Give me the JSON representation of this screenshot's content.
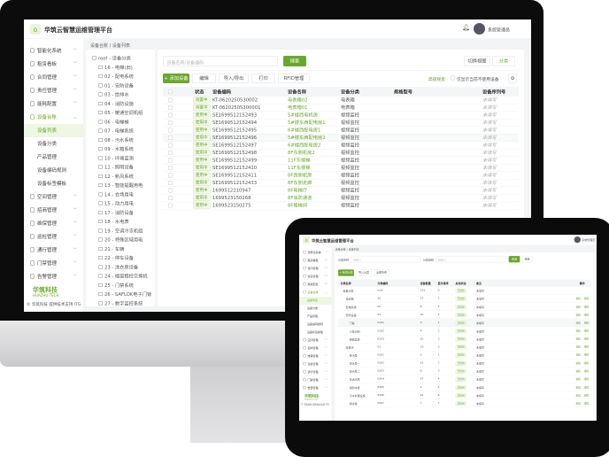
{
  "colors": {
    "accent": "#6aa82b",
    "bezel": "#0c0c0c"
  },
  "app": {
    "title": "华筑云智慧运维管理平台",
    "user": "系统管理员",
    "brand": "华筑科技",
    "brand_en": "HUAZHU TECH",
    "footer": "© 华筑科技 提供技术支持 ITG"
  },
  "sidebar": {
    "items": [
      {
        "label": "智能化系统",
        "icon": "grid-icon"
      },
      {
        "label": "租赁看板",
        "icon": "folder-icon"
      },
      {
        "label": "合同管理",
        "icon": "folder-icon"
      },
      {
        "label": "责任管理",
        "icon": "folder-icon"
      },
      {
        "label": "能耗配置",
        "icon": "folder-icon"
      },
      {
        "label": "设备台账",
        "icon": "device-icon",
        "active": true
      },
      {
        "label": "空间管理",
        "icon": "building-icon"
      },
      {
        "label": "招商管理",
        "icon": "user-icon"
      },
      {
        "label": "维保管理",
        "icon": "tool-icon"
      },
      {
        "label": "巡检管理",
        "icon": "upload-icon"
      },
      {
        "label": "通行管理",
        "icon": "gear-icon"
      },
      {
        "label": "门禁管理",
        "icon": "door-icon"
      },
      {
        "label": "告警管理",
        "icon": "bell-icon"
      }
    ],
    "sub": [
      {
        "label": "设备列表",
        "active": true
      },
      {
        "label": "设备分类"
      },
      {
        "label": "产品管理"
      },
      {
        "label": "设备编码规则"
      },
      {
        "label": "设备标签模板"
      }
    ]
  },
  "breadcrumb": "设备台账 / 设备列表",
  "tree": [
    "root - 设备分类",
    "16 - 电梯(旧)",
    "02 - 配电系统",
    "01 - 安防设备",
    "03 - 给排水",
    "04 - 消防设施",
    "05 - 暖通空调机组",
    "06 - 电梯梯",
    "07 - 电梯系统",
    "08 - 污水系统",
    "09 - 水箱系统",
    "10 - 环境监测",
    "11 - 照明设备",
    "12 - 新风系统",
    "13 - 智能提醒用电",
    "14 - 会场用电",
    "15 - 动力用电",
    "17 - 消防设备",
    "18 - 水电表",
    "19 - 空调冷冻机组",
    "20 - 特殊区域用电",
    "21 - 车辆",
    "22 - 停车设备",
    "23 - 洗衣房设备",
    "24 - 楼层程控交换机",
    "25 - 门禁系统",
    "26 - SAFLOK电子门锁",
    "27 - 数字监控系统"
  ],
  "search": {
    "placeholder": "设备名称/设备编码",
    "button": "搜索",
    "switch_view": "切换视图",
    "category": "分类"
  },
  "toolbar": {
    "add": "+ 添加设备",
    "edit": "编辑",
    "import": "导入/导出",
    "print": "打印",
    "rfid": "RFID管理",
    "advanced": "高级搜索",
    "only_free": "仅显示当前不使用设备"
  },
  "table": {
    "columns": [
      "状态",
      "设备编码",
      "设备名称",
      "设备分类",
      "规格型号",
      "设备序列号"
    ],
    "rows": [
      [
        "闲置中",
        "KT-0620250530002",
        "电表箱02",
        "电表箱",
        "",
        "未填写"
      ],
      [
        "闲置中",
        "KT-06202505300001",
        "电表箱01",
        "电表箱",
        "",
        "未填写"
      ],
      [
        "使用中",
        "SE1699512152493",
        "5#楼西电机房",
        "视频监控",
        "",
        "未填写"
      ],
      [
        "使用中",
        "SE1699512152494",
        "5#楼东西配电房1",
        "视频监控",
        "",
        "未填写"
      ],
      [
        "使用中",
        "SE1699512152495",
        "6#楼西配电房1",
        "视频监控",
        "",
        "未填写"
      ],
      [
        "使用中",
        "SE1699512152496",
        "5#楼东西配电房2",
        "视频监控",
        "",
        "未填写"
      ],
      [
        "使用中",
        "SE1699512152497",
        "6#楼西配电房2",
        "视频监控",
        "",
        "未填写"
      ],
      [
        "使用中",
        "SE1699512152498",
        "8F东侧机房2",
        "视频监控",
        "",
        "未填写"
      ],
      [
        "使用中",
        "SE1699512152499",
        "11F东楼梯",
        "视频监控",
        "",
        "未填写"
      ],
      [
        "使用中",
        "SE1699512152410",
        "11F东楼梯",
        "视频监控",
        "",
        "未填写"
      ],
      [
        "使用中",
        "SE1699512152411",
        "8F西侧机房",
        "视频监控",
        "",
        "未填写"
      ],
      [
        "使用中",
        "SE1699512152433",
        "8F东侧走廊",
        "视频监控",
        "",
        "未填写"
      ],
      [
        "使用中",
        "1699512210947",
        "8F电梯厅",
        "视频监控",
        "",
        "未填写"
      ],
      [
        "使用中",
        "1699523150268",
        "8F消防通道",
        "视频监控",
        "",
        "未填写"
      ],
      [
        "使用中",
        "1699523150275",
        "8F楼梯间",
        "视频监控",
        "",
        "未填写"
      ]
    ]
  },
  "tablet": {
    "filters": [
      {
        "label": "分类名称",
        "placeholder": "请输入"
      },
      {
        "label": "分类编码",
        "placeholder": "请输入"
      }
    ],
    "search": "查询",
    "reset": "重置",
    "toolbar": [
      "+ 新增分类",
      "导入分类",
      "全部折叠"
    ],
    "columns": [
      "分类名称",
      "分类编码",
      "设备数量",
      "显示排序",
      "启用状态",
      "备注",
      "操作"
    ],
    "status": "已启用",
    "edit": "编辑",
    "delete": "删除",
    "rows": [
      [
        "设备分类",
        "root",
        "191",
        "0",
        "已启用",
        "未填写"
      ],
      [
        "电表箱",
        "16",
        "17",
        "1",
        "已启用",
        "未填写"
      ],
      [
        "配电系统",
        "02",
        "8",
        "2",
        "已启用",
        "未填写"
      ],
      [
        "安防设备",
        "01",
        "10",
        "2",
        "已启用",
        "未填写"
      ],
      [
        "门禁",
        "0101",
        "3",
        "1",
        "已启用",
        "未填写"
      ],
      [
        "人脸识别",
        "0102",
        "4",
        "2",
        "已启用",
        "未填写"
      ],
      [
        "视频监控",
        "0103",
        "10",
        "3",
        "已启用",
        "未填写"
      ],
      [
        "给排水",
        "03",
        "19",
        "3",
        "已启用",
        "未填写"
      ],
      [
        "排污泵",
        "0301",
        "3",
        "1",
        "已启用",
        "未填写"
      ],
      [
        "潜水泵一",
        "0302",
        "21",
        "2",
        "已启用",
        "未填写"
      ],
      [
        "潜水泵二",
        "0303",
        "6",
        "3",
        "已启用",
        "未填写"
      ],
      [
        "生活水泵",
        "0304",
        "27",
        "4",
        "已启用",
        "未填写"
      ],
      [
        "消防水泵",
        "0305",
        "5",
        "5",
        "已启用",
        "未填写"
      ],
      [
        "污水处理设施",
        "0306",
        "14",
        "6",
        "已启用",
        "未填写"
      ],
      [
        "雨水泵",
        "0307",
        "7",
        "7",
        "已启用",
        "未填写"
      ]
    ]
  }
}
